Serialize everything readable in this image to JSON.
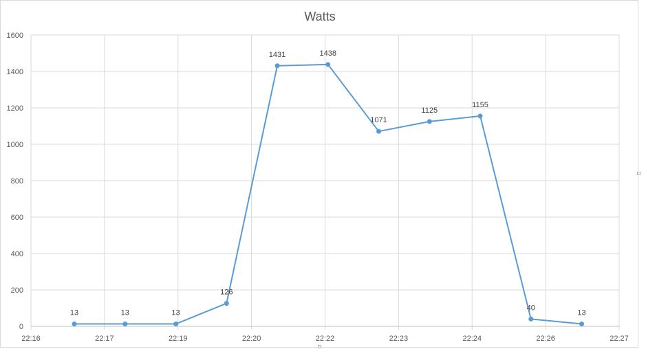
{
  "chart_data": {
    "type": "line",
    "title": "Watts",
    "xlabel": "",
    "ylabel": "",
    "x_tick_labels": [
      "22:16",
      "22:17",
      "22:19",
      "22:20",
      "22:22",
      "22:23",
      "22:24",
      "22:26",
      "22:27"
    ],
    "x_point_positions": [
      0.59,
      1.28,
      1.97,
      2.66,
      3.35,
      4.04,
      4.73,
      5.42,
      6.11,
      6.8,
      7.49
    ],
    "xlim": [
      0,
      8
    ],
    "y_ticks": [
      0,
      200,
      400,
      600,
      800,
      1000,
      1200,
      1400,
      1600
    ],
    "ylim": [
      0,
      1600
    ],
    "series": [
      {
        "values": [
          13,
          13,
          13,
          126,
          1431,
          1438,
          1071,
          1125,
          1155,
          40,
          13
        ],
        "data_labels": [
          "13",
          "13",
          "13",
          "126",
          "1431",
          "1438",
          "1071",
          "1125",
          "1155",
          "40",
          "13"
        ],
        "color": "#5b9bd5"
      }
    ],
    "grid": true,
    "legend": "none",
    "gridline_color": "#d9d9d9",
    "axis_text_color": "#595959",
    "title_color": "#595959"
  }
}
